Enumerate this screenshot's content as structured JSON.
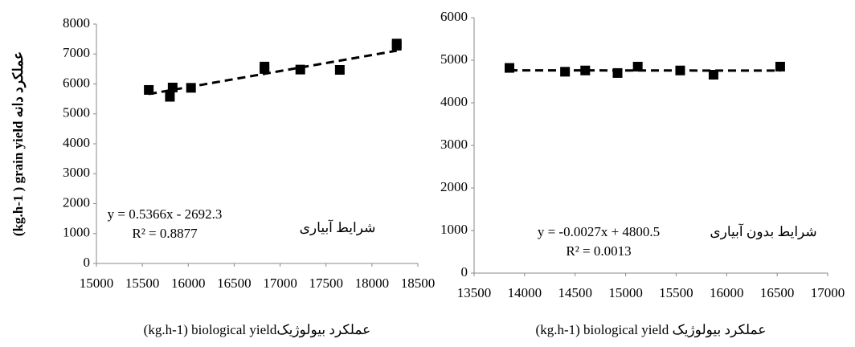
{
  "chart_data": [
    {
      "type": "scatter",
      "y_label": "(kg.h-1 ) grain yield عملکرد دانه",
      "x_label": "(kg.h-1)  biological yieldعملکرد بیولوژیک",
      "annotation": "شرایط آبیاری",
      "equation": "y = 0.5366x - 2692.3",
      "r_squared": "R² = 0.8877",
      "trendline": {
        "slope": 0.5366,
        "intercept": -2692.3
      },
      "color": "#000000",
      "x": [
        15570,
        15800,
        15830,
        16030,
        16830,
        16830,
        17220,
        17650,
        18270,
        18270
      ],
      "values": [
        5800,
        5570,
        5880,
        5870,
        6580,
        6500,
        6480,
        6470,
        7350,
        7280
      ],
      "xlim": [
        15000,
        18500
      ],
      "xticks": [
        15000,
        15500,
        16000,
        16500,
        17000,
        17500,
        18000,
        18500
      ],
      "ylim": [
        0,
        8000
      ],
      "yticks": [
        0,
        1000,
        2000,
        3000,
        4000,
        5000,
        6000,
        7000,
        8000
      ]
    },
    {
      "type": "scatter",
      "x_label": "(kg.h-1) biological yield عملکرد بیولوژیک",
      "annotation": "شرایط بدون آبیاری",
      "equation": "y = -0.0027x + 4800.5",
      "r_squared": "R² = 0.0013",
      "trendline": {
        "slope": -0.0027,
        "intercept": 4800.5
      },
      "color": "#000000",
      "x": [
        13850,
        14400,
        14600,
        14920,
        15120,
        15540,
        15870,
        16530
      ],
      "values": [
        4820,
        4730,
        4760,
        4700,
        4850,
        4760,
        4660,
        4850
      ],
      "xlim": [
        13500,
        17000
      ],
      "xticks": [
        13500,
        14000,
        14500,
        15000,
        15500,
        16000,
        16500,
        17000
      ],
      "ylim": [
        0,
        6000
      ],
      "yticks": [
        0,
        1000,
        2000,
        3000,
        4000,
        5000,
        6000
      ]
    }
  ]
}
